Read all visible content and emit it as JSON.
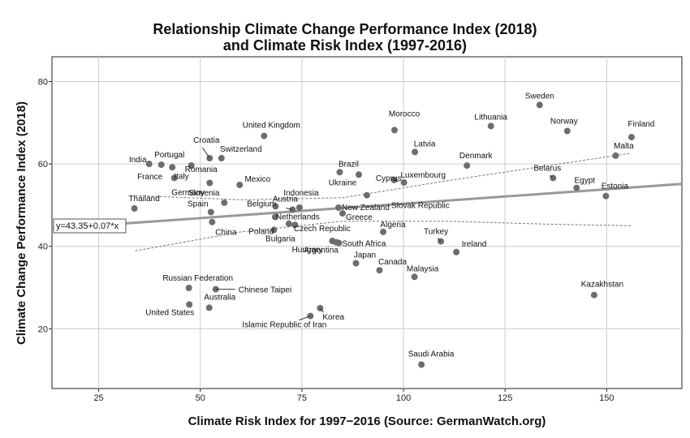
{
  "chart_data": {
    "type": "scatter",
    "title_line1": "Relationship Climate Change Performance Index (2018)",
    "title_line2": "and Climate Risk Index (1997-2016)",
    "xlabel": "Climate Risk Index for 1997−2016 (Source: GermanWatch.org)",
    "ylabel": "Climate Change Performance Index (2018)",
    "xlim": [
      13.5,
      168.5
    ],
    "ylim": [
      5.5,
      86
    ],
    "xticks": [
      25,
      50,
      75,
      100,
      125,
      150
    ],
    "yticks": [
      20,
      40,
      60,
      80
    ],
    "grid": true,
    "regression": {
      "intercept": 43.35,
      "slope": 0.07,
      "label": "y=43.35+0.07*x"
    },
    "ci_upper": [
      [
        34,
        52.3
      ],
      [
        60,
        51.3
      ],
      [
        85,
        51.8
      ],
      [
        110,
        55.8
      ],
      [
        135,
        59.5
      ],
      [
        156,
        62.6
      ]
    ],
    "ci_lower": [
      [
        34,
        38.9
      ],
      [
        60,
        43.5
      ],
      [
        85,
        46.1
      ],
      [
        110,
        46.1
      ],
      [
        135,
        45.4
      ],
      [
        156,
        45.0
      ]
    ],
    "points": [
      {
        "name": "Sweden",
        "x": 133.5,
        "y": 74.3
      },
      {
        "name": "Lithuania",
        "x": 121.5,
        "y": 69.2
      },
      {
        "name": "Norway",
        "x": 140.3,
        "y": 68.0
      },
      {
        "name": "Finland",
        "x": 156.1,
        "y": 66.5
      },
      {
        "name": "Morocco",
        "x": 97.8,
        "y": 68.2
      },
      {
        "name": "United Kingdom",
        "x": 65.7,
        "y": 66.8
      },
      {
        "name": "Latvia",
        "x": 102.8,
        "y": 62.9
      },
      {
        "name": "Malta",
        "x": 152.2,
        "y": 62.0
      },
      {
        "name": "Croatia",
        "x": 52.3,
        "y": 61.4
      },
      {
        "name": "Switzerland",
        "x": 55.2,
        "y": 61.4
      },
      {
        "name": "India",
        "x": 37.4,
        "y": 60.0
      },
      {
        "name": "Portugal",
        "x": 40.4,
        "y": 59.8
      },
      {
        "name": "France",
        "x": 43.1,
        "y": 59.2
      },
      {
        "name": "Romania",
        "x": 47.8,
        "y": 59.6
      },
      {
        "name": "Italy",
        "x": 43.6,
        "y": 56.6
      },
      {
        "name": "Germany",
        "x": 52.3,
        "y": 55.4
      },
      {
        "name": "Mexico",
        "x": 59.7,
        "y": 54.9
      },
      {
        "name": "Denmark",
        "x": 115.6,
        "y": 59.6
      },
      {
        "name": "Brazil",
        "x": 84.3,
        "y": 58.0
      },
      {
        "name": "Ukraine",
        "x": 89.0,
        "y": 57.4
      },
      {
        "name": "Luxembourg",
        "x": 97.7,
        "y": 56.1
      },
      {
        "name": "Cyprus",
        "x": 100.1,
        "y": 55.5
      },
      {
        "name": "Belarus",
        "x": 136.8,
        "y": 56.6
      },
      {
        "name": "Egypt",
        "x": 142.6,
        "y": 54.2
      },
      {
        "name": "Estonia",
        "x": 149.8,
        "y": 52.2
      },
      {
        "name": "Slovak Republic",
        "x": 91.0,
        "y": 52.4
      },
      {
        "name": "Slovenia",
        "x": 55.9,
        "y": 50.6
      },
      {
        "name": "Austria",
        "x": 68.5,
        "y": 49.7
      },
      {
        "name": "Indonesia",
        "x": 74.4,
        "y": 49.4
      },
      {
        "name": "Thailand",
        "x": 33.8,
        "y": 49.2
      },
      {
        "name": "Spain",
        "x": 52.6,
        "y": 48.3
      },
      {
        "name": "New Zealand",
        "x": 84.0,
        "y": 49.4
      },
      {
        "name": "Greece",
        "x": 85.0,
        "y": 48.0
      },
      {
        "name": "Belgium",
        "x": 72.7,
        "y": 48.9
      },
      {
        "name": "Netherlands",
        "x": 68.4,
        "y": 47.1
      },
      {
        "name": "China",
        "x": 52.9,
        "y": 45.9
      },
      {
        "name": "Czech Republic",
        "x": 71.8,
        "y": 45.5
      },
      {
        "name": "Poland",
        "x": 73.3,
        "y": 45.2
      },
      {
        "name": "Algeria",
        "x": 95.0,
        "y": 43.5
      },
      {
        "name": "Bulgaria",
        "x": 68.1,
        "y": 44.0
      },
      {
        "name": "Turkey",
        "x": 109.2,
        "y": 41.2
      },
      {
        "name": "Hungary",
        "x": 82.5,
        "y": 41.3
      },
      {
        "name": "South Africa",
        "x": 84.1,
        "y": 40.8
      },
      {
        "name": "Argentina",
        "x": 83.4,
        "y": 41.0
      },
      {
        "name": "Ireland",
        "x": 113.0,
        "y": 38.6
      },
      {
        "name": "Japan",
        "x": 88.3,
        "y": 35.9
      },
      {
        "name": "Canada",
        "x": 94.1,
        "y": 34.2
      },
      {
        "name": "Malaysia",
        "x": 102.7,
        "y": 32.6
      },
      {
        "name": "Russian Federation",
        "x": 47.2,
        "y": 29.9
      },
      {
        "name": "Chinese Taipei",
        "x": 53.8,
        "y": 29.6
      },
      {
        "name": "Kazakhstan",
        "x": 146.9,
        "y": 28.2
      },
      {
        "name": "Australia",
        "x": 52.2,
        "y": 25.1
      },
      {
        "name": "United States",
        "x": 47.3,
        "y": 25.9
      },
      {
        "name": "Korea",
        "x": 79.5,
        "y": 25.0
      },
      {
        "name": "Islamic Republic of Iran",
        "x": 77.1,
        "y": 23.1
      },
      {
        "name": "Saudi Arabia",
        "x": 104.4,
        "y": 11.3
      }
    ]
  }
}
